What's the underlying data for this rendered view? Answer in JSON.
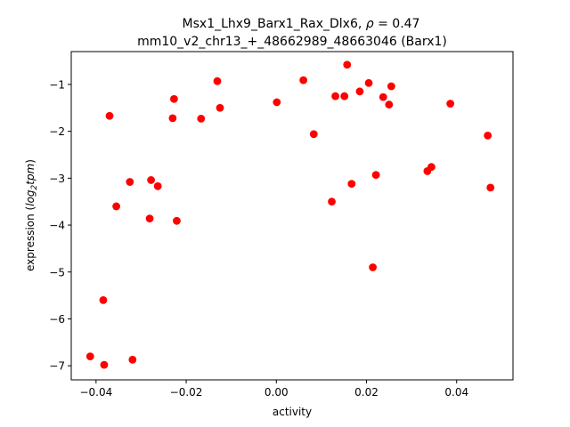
{
  "chart_data": {
    "type": "scatter",
    "title_line1": "Msx1_Lhx9_Barx1_Rax_Dlx6, ",
    "title_rho": "ρ",
    "title_rho_value": " = 0.47",
    "title_line2": "mm10_v2_chr13_+_48662989_48663046 (Barx1)",
    "xlabel": "activity",
    "ylabel_prefix": "expression (",
    "ylabel_log": "log",
    "ylabel_sub": "2",
    "ylabel_tpm": "tpm",
    "ylabel_suffix": ")",
    "xlim": [
      -0.0455,
      0.0525
    ],
    "ylim": [
      -7.3,
      -0.3
    ],
    "xticks": [
      -0.04,
      -0.02,
      0.0,
      0.02,
      0.04
    ],
    "xtick_labels": [
      "−0.04",
      "−0.02",
      "0.00",
      "0.02",
      "0.04"
    ],
    "yticks": [
      -7,
      -6,
      -5,
      -4,
      -3,
      -2,
      -1
    ],
    "ytick_labels": [
      "−7",
      "−6",
      "−5",
      "−4",
      "−3",
      "−2",
      "−1"
    ],
    "marker_color": "#ff0000",
    "grid": false,
    "points": [
      {
        "x": -0.0413,
        "y": -6.8
      },
      {
        "x": -0.0382,
        "y": -6.98
      },
      {
        "x": -0.0384,
        "y": -5.6
      },
      {
        "x": -0.0319,
        "y": -6.87
      },
      {
        "x": -0.037,
        "y": -1.67
      },
      {
        "x": -0.0355,
        "y": -3.6
      },
      {
        "x": -0.0325,
        "y": -3.08
      },
      {
        "x": -0.0281,
        "y": -3.86
      },
      {
        "x": -0.0278,
        "y": -3.04
      },
      {
        "x": -0.0263,
        "y": -3.17
      },
      {
        "x": -0.023,
        "y": -1.72
      },
      {
        "x": -0.0227,
        "y": -1.31
      },
      {
        "x": -0.0221,
        "y": -3.91
      },
      {
        "x": -0.0167,
        "y": -1.73
      },
      {
        "x": -0.0131,
        "y": -0.93
      },
      {
        "x": -0.0125,
        "y": -1.5
      },
      {
        "x": 0.0001,
        "y": -1.38
      },
      {
        "x": 0.006,
        "y": -0.91
      },
      {
        "x": 0.0083,
        "y": -2.06
      },
      {
        "x": 0.0123,
        "y": -3.5
      },
      {
        "x": 0.0131,
        "y": -1.25
      },
      {
        "x": 0.0151,
        "y": -1.25
      },
      {
        "x": 0.0157,
        "y": -0.58
      },
      {
        "x": 0.0167,
        "y": -3.12
      },
      {
        "x": 0.0185,
        "y": -1.15
      },
      {
        "x": 0.0205,
        "y": -0.97
      },
      {
        "x": 0.0214,
        "y": -4.9
      },
      {
        "x": 0.0221,
        "y": -2.93
      },
      {
        "x": 0.0237,
        "y": -1.27
      },
      {
        "x": 0.025,
        "y": -1.43
      },
      {
        "x": 0.0255,
        "y": -1.04
      },
      {
        "x": 0.0335,
        "y": -2.85
      },
      {
        "x": 0.0344,
        "y": -2.76
      },
      {
        "x": 0.0386,
        "y": -1.41
      },
      {
        "x": 0.0469,
        "y": -2.09
      },
      {
        "x": 0.0475,
        "y": -3.2
      }
    ]
  }
}
